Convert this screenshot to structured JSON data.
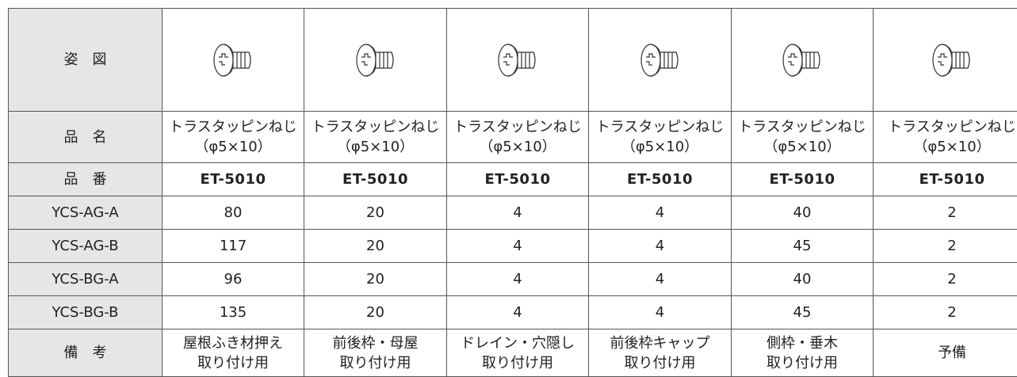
{
  "table": {
    "header": {
      "label": "姿　図"
    },
    "rows": [
      {
        "label": "品　名",
        "cells": [
          [
            "トラスタッピンねじ",
            "（φ5×10）"
          ],
          [
            "トラスタッピンねじ",
            "（φ5×10）"
          ],
          [
            "トラスタッピンねじ",
            "（φ5×10）"
          ],
          [
            "トラスタッピンねじ",
            "（φ5×10）"
          ],
          [
            "トラスタッピンねじ",
            "（φ5×10）"
          ],
          [
            "トラスタッピンねじ",
            "（φ5×10）"
          ]
        ]
      },
      {
        "label": "品　番",
        "cells": [
          "ET-5010",
          "ET-5010",
          "ET-5010",
          "ET-5010",
          "ET-5010",
          "ET-5010"
        ]
      },
      {
        "label": "YCS-AG-A",
        "cells": [
          80,
          20,
          4,
          4,
          40,
          2
        ]
      },
      {
        "label": "YCS-AG-B",
        "cells": [
          117,
          20,
          4,
          4,
          45,
          2
        ]
      },
      {
        "label": "YCS-BG-A",
        "cells": [
          96,
          20,
          4,
          4,
          40,
          2
        ]
      },
      {
        "label": "YCS-BG-B",
        "cells": [
          135,
          20,
          4,
          4,
          45,
          2
        ]
      },
      {
        "label": "備　考",
        "cells": [
          [
            "屋根ふき材押え",
            "取り付け用"
          ],
          [
            "前後枠・母屋",
            "取り付け用"
          ],
          [
            "ドレイン・穴隠し",
            "取り付け用"
          ],
          [
            "前後枠キャップ",
            "取り付け用"
          ],
          [
            "側枠・垂木",
            "取り付け用"
          ],
          [
            "予備"
          ]
        ]
      }
    ]
  }
}
